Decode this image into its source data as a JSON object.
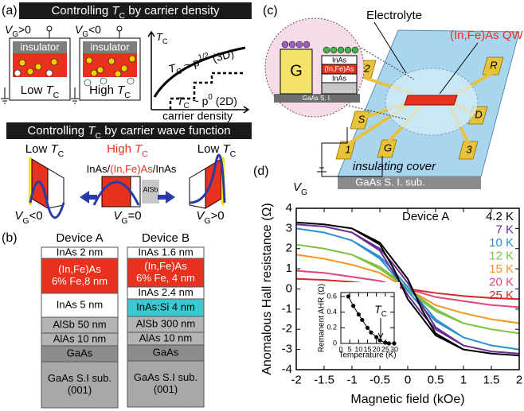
{
  "panel_a": {
    "label": "(a)",
    "title1": [
      "Controlling",
      "T",
      "C",
      "by carrier density"
    ],
    "vg_pos": [
      "V",
      "G",
      ">0"
    ],
    "vg_neg": [
      "V",
      "G",
      "<0"
    ],
    "insulator": [
      "insulator",
      "insulator"
    ],
    "low": [
      "Low",
      "T",
      "C"
    ],
    "high": [
      "High",
      "T",
      "C"
    ],
    "graph": {
      "ylabel": [
        "T",
        "C"
      ],
      "law3d": [
        "T",
        "C",
        "~ p",
        "1/2",
        "(3D)"
      ],
      "law2d": [
        "T",
        "C",
        "~ p",
        "0",
        "(2D)"
      ],
      "xlabel": "carrier density"
    },
    "title2": [
      "Controlling",
      "T",
      "C",
      "by carrier wave function"
    ],
    "wf": {
      "low_left": [
        "Low",
        "T",
        "C"
      ],
      "high": [
        "High",
        "T",
        "C"
      ],
      "low_right": [
        "Low",
        "T",
        "C"
      ],
      "stack": [
        "InAs/",
        "(In,Fe)As",
        "/InAs"
      ],
      "alsb": "AlSb",
      "vg_left": [
        "V",
        "G",
        "<0"
      ],
      "vg_mid": [
        "V",
        "G",
        "=0"
      ],
      "vg_right": [
        "V",
        "G",
        ">0"
      ]
    }
  },
  "panel_b": {
    "label": "(b)",
    "devices": [
      {
        "name": "Device A",
        "layers": [
          {
            "lines": [
              "InAs 2 nm"
            ],
            "color": "#ffffff"
          },
          {
            "lines": [
              "(In,Fe)As",
              "6% Fe,8 nm"
            ],
            "color": "#e8321e"
          },
          {
            "lines": [
              "InAs 5 nm"
            ],
            "color": "#ffffff"
          },
          {
            "lines": [
              "AlSb 50 nm"
            ],
            "color": "#b4b4b4"
          },
          {
            "lines": [
              "AlAs 10 nm"
            ],
            "color": "#b4b4b4"
          },
          {
            "lines": [
              "GaAs"
            ],
            "color": "#8c8c8c"
          },
          {
            "lines": [
              "GaAs S.I sub.",
              "(001)"
            ],
            "color": "#a8a8a8"
          }
        ]
      },
      {
        "name": "Device B",
        "layers": [
          {
            "lines": [
              "InAs 1.6 nm"
            ],
            "color": "#ffffff"
          },
          {
            "lines": [
              "(In,Fe)As",
              "6% Fe, 4 nm"
            ],
            "color": "#e8321e"
          },
          {
            "lines": [
              "InAs 2.4 nm"
            ],
            "color": "#ffffff"
          },
          {
            "lines": [
              "InAs:Si 4 nm"
            ],
            "color": "#3cc8d2"
          },
          {
            "lines": [
              "AlSb 300 nm"
            ],
            "color": "#b4b4b4"
          },
          {
            "lines": [
              "AlAs 10 nm"
            ],
            "color": "#b4b4b4"
          },
          {
            "lines": [
              "GaAs"
            ],
            "color": "#8c8c8c"
          },
          {
            "lines": [
              "GaAs S.I sub.",
              "(001)"
            ],
            "color": "#a8a8a8"
          }
        ]
      }
    ]
  },
  "panel_c": {
    "label": "(c)",
    "electrolyte": "Electrolyte",
    "qw": "(In,Fe)As QW",
    "inset": {
      "gate": "G",
      "inas_top": "InAs",
      "infeas": "(In,Fe)As",
      "inas_bottom": "InAs",
      "substrate": "GaAs S. I."
    },
    "pads": [
      "1",
      "2",
      "S",
      "G",
      "D",
      "R",
      "3"
    ],
    "vg": [
      "V",
      "G"
    ],
    "cover": "insulating cover",
    "substrate": "GaAs S. I. sub."
  },
  "panel_d_label": "(d)",
  "chart_data": [
    {
      "type": "line",
      "xlabel": "Magnetic field (kOe)",
      "ylabel": "Anomalous Hall resistance (Ω)",
      "legend_title": "Device A",
      "xlim": [
        -2,
        2
      ],
      "ylim": [
        -4,
        4
      ],
      "xticks": [
        -2,
        -1.5,
        -1,
        -0.5,
        0,
        0.5,
        1,
        1.5,
        2
      ],
      "yticks": [
        -4,
        -3,
        -2,
        -1,
        0,
        1,
        2,
        3,
        4
      ],
      "x": [
        -2,
        -1.5,
        -1,
        -0.5,
        -0.25,
        0,
        0.25,
        0.5,
        1,
        1.5,
        2,
        2,
        1.5,
        1,
        0.5,
        0.25,
        0,
        -0.25,
        -0.5,
        -1,
        -1.5,
        -2
      ],
      "series": [
        {
          "name": "4.2 K",
          "color": "#000000",
          "values": [
            3.3,
            3.2,
            3.0,
            2.3,
            1.4,
            0.5,
            -1.0,
            -2.2,
            -3.0,
            -3.2,
            -3.3,
            -3.3,
            -3.2,
            -3.0,
            -2.3,
            -1.4,
            -0.5,
            1.0,
            2.2,
            3.0,
            3.2,
            3.3
          ]
        },
        {
          "name": "7 K",
          "color": "#6a2c91",
          "values": [
            3.2,
            3.1,
            2.8,
            2.0,
            1.2,
            0.3,
            -0.8,
            -1.9,
            -2.8,
            -3.1,
            -3.2,
            -3.2,
            -3.1,
            -2.8,
            -2.0,
            -1.2,
            -0.3,
            0.8,
            1.9,
            2.8,
            3.1,
            3.2
          ]
        },
        {
          "name": "10 K",
          "color": "#2e8fd0",
          "values": [
            3.0,
            2.8,
            2.4,
            1.6,
            0.9,
            0.1,
            -0.7,
            -1.5,
            -2.4,
            -2.8,
            -3.0,
            -3.0,
            -2.8,
            -2.4,
            -1.6,
            -0.9,
            -0.1,
            0.7,
            1.5,
            2.4,
            2.8,
            3.0
          ]
        },
        {
          "name": "12 K",
          "color": "#7dc242",
          "values": [
            2.2,
            2.0,
            1.7,
            1.1,
            0.6,
            0.05,
            -0.5,
            -1.0,
            -1.7,
            -2.0,
            -2.2,
            -2.2,
            -2.0,
            -1.7,
            -1.1,
            -0.6,
            -0.05,
            0.5,
            1.0,
            1.7,
            2.0,
            2.2
          ]
        },
        {
          "name": "15 K",
          "color": "#f7941d",
          "values": [
            1.7,
            1.5,
            1.2,
            0.8,
            0.4,
            0,
            -0.4,
            -0.8,
            -1.2,
            -1.5,
            -1.7,
            -1.7,
            -1.5,
            -1.2,
            -0.8,
            -0.4,
            0,
            0.4,
            0.8,
            1.2,
            1.5,
            1.7
          ]
        },
        {
          "name": "20 K",
          "color": "#e0457b",
          "values": [
            0.9,
            0.8,
            0.6,
            0.4,
            0.2,
            0,
            -0.2,
            -0.4,
            -0.6,
            -0.8,
            -0.9,
            -0.9,
            -0.8,
            -0.6,
            -0.4,
            -0.2,
            0,
            0.2,
            0.4,
            0.6,
            0.8,
            0.9
          ]
        },
        {
          "name": "25 K",
          "color": "#d9252a",
          "values": [
            0.5,
            0.45,
            0.35,
            0.2,
            0.1,
            0,
            -0.1,
            -0.2,
            -0.35,
            -0.45,
            -0.5,
            -0.5,
            -0.45,
            -0.35,
            -0.2,
            -0.1,
            0,
            0.1,
            0.2,
            0.35,
            0.45,
            0.5
          ]
        }
      ]
    },
    {
      "type": "line",
      "markers": true,
      "xlabel": "Temperature (K)",
      "ylabel": "Remanent AHR (Ω)",
      "annotation": [
        "T",
        "C"
      ],
      "xlim": [
        0,
        30
      ],
      "ylim": [
        0,
        0.65
      ],
      "xticks": [
        0,
        5,
        10,
        15,
        20,
        25,
        30
      ],
      "yticks": [
        0,
        0.2,
        0.4,
        0.6
      ],
      "x": [
        4.2,
        7,
        10,
        12,
        15,
        17,
        20,
        22,
        25,
        27,
        30
      ],
      "series": [
        {
          "color": "#000000",
          "values": [
            0.6,
            0.48,
            0.37,
            0.3,
            0.2,
            0.14,
            0.08,
            0.04,
            0.01,
            0,
            0
          ]
        }
      ]
    }
  ]
}
